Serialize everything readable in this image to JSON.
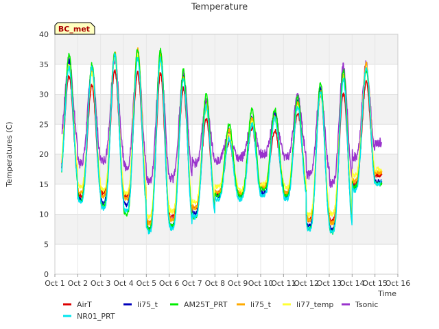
{
  "chart_data": {
    "type": "line",
    "title": "Temperature",
    "xlabel": "Time",
    "ylabel": "Temperatures (C)",
    "site_badge": "BC_met",
    "xlim": [
      1,
      16
    ],
    "ylim": [
      0,
      40
    ],
    "grid": true,
    "banded_background": true,
    "legend_placement": "bottom",
    "x_tick_values": [
      1,
      2,
      3,
      4,
      5,
      6,
      7,
      8,
      9,
      10,
      11,
      12,
      13,
      14,
      15,
      16
    ],
    "x_tick_labels": [
      "Oct 1",
      "Oct 2",
      "Oct 3",
      "Oct 4",
      "Oct 5",
      "Oct 6",
      "Oct 7",
      "Oct 8",
      "Oct 9",
      "Oct 10",
      "Oct 11",
      "Oct 12",
      "Oct 13",
      "Oct 14",
      "Oct 15",
      "Oct 16"
    ],
    "y_tick_values": [
      0,
      5,
      10,
      15,
      20,
      25,
      30,
      35,
      40
    ],
    "y_tick_labels": [
      "0",
      "5",
      "10",
      "15",
      "20",
      "25",
      "30",
      "35",
      "40"
    ],
    "x_range_of_data": [
      1.3,
      15.3
    ],
    "daily_extremes_note": "Per-day (min, max) values used to render each diurnal series",
    "series": [
      {
        "name": "AirT",
        "color": "#dd0000",
        "mins": [
          15.5,
          13.0,
          13.5,
          13.0,
          8.5,
          9.5,
          11.0,
          13.5,
          13.5,
          14.5,
          13.5,
          9.0,
          9.0,
          15.0,
          16.5
        ],
        "maxs": [
          33.0,
          31.5,
          34.0,
          33.5,
          33.5,
          31.0,
          26.0,
          22.0,
          24.5,
          24.0,
          27.0,
          30.0,
          30.0,
          32.0,
          17.0
        ]
      },
      {
        "name": "NR01_PRT",
        "color": "#00e5ee",
        "mins": [
          14.5,
          12.0,
          11.0,
          10.5,
          7.0,
          7.5,
          9.5,
          12.5,
          12.5,
          13.0,
          12.5,
          7.5,
          7.0,
          14.0,
          15.0
        ],
        "maxs": [
          34.5,
          34.5,
          36.5,
          36.0,
          36.0,
          32.5,
          28.0,
          22.5,
          25.0,
          26.0,
          28.0,
          30.5,
          32.5,
          34.5,
          17.5
        ]
      },
      {
        "name": "li75_t",
        "color": "#0000bb",
        "mins": [
          15.0,
          12.5,
          12.0,
          11.5,
          7.5,
          8.0,
          10.0,
          13.0,
          13.0,
          13.5,
          13.0,
          8.0,
          7.5,
          14.5,
          15.5
        ],
        "maxs": [
          35.5,
          34.5,
          36.5,
          36.5,
          37.0,
          33.0,
          28.5,
          24.0,
          26.0,
          27.0,
          29.0,
          31.0,
          33.0,
          34.5,
          17.5
        ]
      },
      {
        "name": "AM25T_PRT",
        "color": "#00ee00",
        "mins": [
          14.0,
          12.5,
          11.5,
          10.0,
          7.5,
          8.0,
          9.5,
          13.0,
          13.0,
          14.0,
          13.0,
          7.5,
          7.0,
          14.5,
          15.0
        ],
        "maxs": [
          36.5,
          35.0,
          37.0,
          37.5,
          37.5,
          34.0,
          30.0,
          25.0,
          27.5,
          27.5,
          29.5,
          32.0,
          34.0,
          34.0,
          17.0
        ]
      },
      {
        "name": "li75_t",
        "color": "#ffaa00",
        "mins": [
          16.0,
          13.5,
          13.0,
          12.5,
          8.5,
          9.0,
          11.0,
          13.5,
          13.5,
          14.5,
          13.5,
          9.0,
          8.5,
          15.5,
          17.0
        ],
        "maxs": [
          35.0,
          34.0,
          37.0,
          37.5,
          36.5,
          33.0,
          28.5,
          24.0,
          26.0,
          26.5,
          28.5,
          30.5,
          33.5,
          35.0,
          17.0
        ]
      },
      {
        "name": "li77_temp",
        "color": "#ffff33",
        "mins": [
          17.0,
          14.5,
          14.0,
          13.5,
          9.5,
          10.5,
          12.0,
          14.5,
          14.0,
          15.0,
          14.5,
          10.0,
          10.0,
          16.5,
          17.5
        ],
        "maxs": [
          35.0,
          33.5,
          36.0,
          36.5,
          35.5,
          32.5,
          27.5,
          23.5,
          25.5,
          26.0,
          28.0,
          30.0,
          33.0,
          34.5,
          17.0
        ]
      },
      {
        "name": "Tsonic",
        "color": "#9933cc",
        "mins": [
          21.5,
          18.5,
          19.0,
          18.0,
          15.5,
          16.0,
          18.5,
          19.0,
          19.5,
          20.0,
          19.5,
          16.5,
          15.0,
          19.5,
          22.0
        ],
        "maxs": [
          35.5,
          34.5,
          36.0,
          36.0,
          36.0,
          33.5,
          28.5,
          23.5,
          25.5,
          26.5,
          29.5,
          31.0,
          34.5,
          35.0,
          22.5
        ]
      }
    ]
  }
}
